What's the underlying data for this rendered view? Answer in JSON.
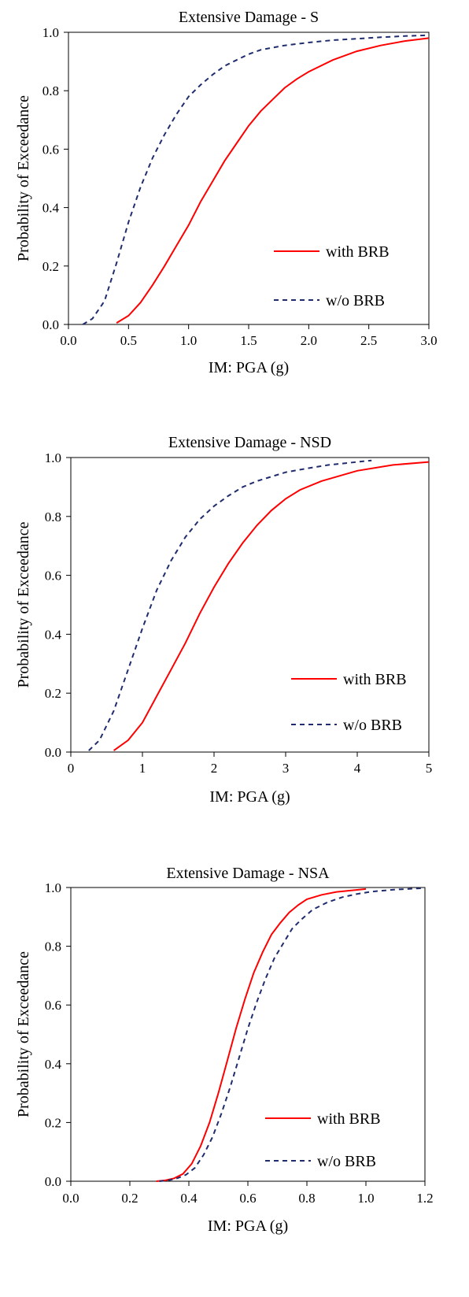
{
  "chart_data": [
    {
      "type": "line",
      "title": "Extensive Damage - S",
      "xlabel": "IM: PGA (g)",
      "ylabel": "Probability of Exceedance",
      "xlim": [
        0,
        3
      ],
      "ylim": [
        0,
        1
      ],
      "xticks": [
        0,
        0.5,
        1,
        1.5,
        2,
        2.5,
        3
      ],
      "xtick_labels": [
        "0.0",
        "0.5",
        "1.0",
        "1.5",
        "2.0",
        "2.5",
        "3.0"
      ],
      "yticks": [
        0,
        0.2,
        0.4,
        0.6,
        0.8,
        1
      ],
      "ytick_labels": [
        "0.0",
        "0.2",
        "0.4",
        "0.6",
        "0.8",
        "1.0"
      ],
      "grid": false,
      "legend": "bottom-right",
      "series": [
        {
          "name": "with BRB",
          "color": "#ff0000",
          "style": "solid",
          "x": [
            0.4,
            0.5,
            0.6,
            0.7,
            0.8,
            0.9,
            1.0,
            1.1,
            1.2,
            1.3,
            1.4,
            1.5,
            1.6,
            1.7,
            1.8,
            1.9,
            2.0,
            2.2,
            2.4,
            2.6,
            2.8,
            3.0
          ],
          "y": [
            0.005,
            0.03,
            0.075,
            0.135,
            0.2,
            0.27,
            0.34,
            0.42,
            0.49,
            0.56,
            0.62,
            0.68,
            0.73,
            0.77,
            0.81,
            0.84,
            0.865,
            0.905,
            0.935,
            0.955,
            0.97,
            0.98
          ]
        },
        {
          "name": "w/o BRB",
          "color": "#1f2d6e",
          "style": "dashed",
          "x": [
            0.12,
            0.2,
            0.3,
            0.4,
            0.5,
            0.6,
            0.7,
            0.8,
            0.9,
            1.0,
            1.1,
            1.2,
            1.3,
            1.4,
            1.5,
            1.6,
            1.8,
            2.0,
            2.2,
            2.4,
            2.6,
            2.8,
            3.0
          ],
          "y": [
            0.0,
            0.02,
            0.08,
            0.21,
            0.35,
            0.47,
            0.57,
            0.65,
            0.72,
            0.78,
            0.82,
            0.855,
            0.885,
            0.905,
            0.925,
            0.94,
            0.955,
            0.965,
            0.973,
            0.978,
            0.983,
            0.987,
            0.99
          ]
        }
      ]
    },
    {
      "type": "line",
      "title": "Extensive Damage - NSD",
      "xlabel": "IM: PGA (g)",
      "ylabel": "Probability of Exceedance",
      "xlim": [
        0,
        5
      ],
      "ylim": [
        0,
        1
      ],
      "xticks": [
        0,
        1,
        2,
        3,
        4,
        5
      ],
      "xtick_labels": [
        "0",
        "1",
        "2",
        "3",
        "4",
        "5"
      ],
      "yticks": [
        0,
        0.2,
        0.4,
        0.6,
        0.8,
        1
      ],
      "ytick_labels": [
        "0.0",
        "0.2",
        "0.4",
        "0.6",
        "0.8",
        "1.0"
      ],
      "grid": false,
      "legend": "bottom-right",
      "series": [
        {
          "name": "with BRB",
          "color": "#ff0000",
          "style": "solid",
          "x": [
            0.6,
            0.8,
            1.0,
            1.2,
            1.4,
            1.6,
            1.8,
            2.0,
            2.2,
            2.4,
            2.6,
            2.8,
            3.0,
            3.2,
            3.5,
            4.0,
            4.5,
            5.0
          ],
          "y": [
            0.005,
            0.04,
            0.1,
            0.19,
            0.28,
            0.37,
            0.47,
            0.56,
            0.64,
            0.71,
            0.77,
            0.82,
            0.86,
            0.89,
            0.92,
            0.955,
            0.975,
            0.985
          ]
        },
        {
          "name": "w/o BRB",
          "color": "#1f2d6e",
          "style": "dashed",
          "x": [
            0.25,
            0.4,
            0.6,
            0.8,
            1.0,
            1.2,
            1.4,
            1.6,
            1.8,
            2.0,
            2.2,
            2.4,
            2.6,
            2.8,
            3.0,
            3.3,
            3.6,
            4.0,
            4.2
          ],
          "y": [
            0.005,
            0.04,
            0.14,
            0.28,
            0.42,
            0.55,
            0.65,
            0.73,
            0.79,
            0.835,
            0.87,
            0.9,
            0.92,
            0.935,
            0.95,
            0.963,
            0.975,
            0.985,
            0.99
          ]
        }
      ]
    },
    {
      "type": "line",
      "title": "Extensive Damage - NSA",
      "xlabel": "IM: PGA (g)",
      "ylabel": "Probability of Exceedance",
      "xlim": [
        0,
        1.2
      ],
      "ylim": [
        0,
        1
      ],
      "xticks": [
        0,
        0.2,
        0.4,
        0.6,
        0.8,
        1.0,
        1.2
      ],
      "xtick_labels": [
        "0.0",
        "0.2",
        "0.4",
        "0.6",
        "0.8",
        "1.0",
        "1.2"
      ],
      "yticks": [
        0,
        0.2,
        0.4,
        0.6,
        0.8,
        1
      ],
      "ytick_labels": [
        "0.0",
        "0.2",
        "0.4",
        "0.6",
        "0.8",
        "1.0"
      ],
      "grid": false,
      "legend": "bottom-right",
      "series": [
        {
          "name": "with BRB",
          "color": "#ff0000",
          "style": "solid",
          "x": [
            0.29,
            0.32,
            0.35,
            0.38,
            0.41,
            0.44,
            0.47,
            0.5,
            0.53,
            0.56,
            0.59,
            0.62,
            0.65,
            0.68,
            0.71,
            0.74,
            0.77,
            0.8,
            0.85,
            0.9,
            0.95,
            1.0
          ],
          "y": [
            0.0,
            0.003,
            0.01,
            0.025,
            0.06,
            0.12,
            0.2,
            0.3,
            0.41,
            0.52,
            0.62,
            0.71,
            0.78,
            0.84,
            0.88,
            0.915,
            0.94,
            0.96,
            0.975,
            0.985,
            0.99,
            0.995
          ]
        },
        {
          "name": "w/o BRB",
          "color": "#1f2d6e",
          "style": "dashed",
          "x": [
            0.3,
            0.33,
            0.36,
            0.39,
            0.42,
            0.45,
            0.48,
            0.51,
            0.54,
            0.57,
            0.6,
            0.63,
            0.66,
            0.69,
            0.72,
            0.75,
            0.78,
            0.82,
            0.87,
            0.92,
            0.97,
            1.02,
            1.1,
            1.2
          ],
          "y": [
            0.0,
            0.003,
            0.01,
            0.022,
            0.045,
            0.09,
            0.15,
            0.23,
            0.32,
            0.42,
            0.52,
            0.61,
            0.69,
            0.76,
            0.81,
            0.86,
            0.89,
            0.925,
            0.95,
            0.967,
            0.978,
            0.986,
            0.993,
            0.998
          ]
        }
      ]
    }
  ]
}
